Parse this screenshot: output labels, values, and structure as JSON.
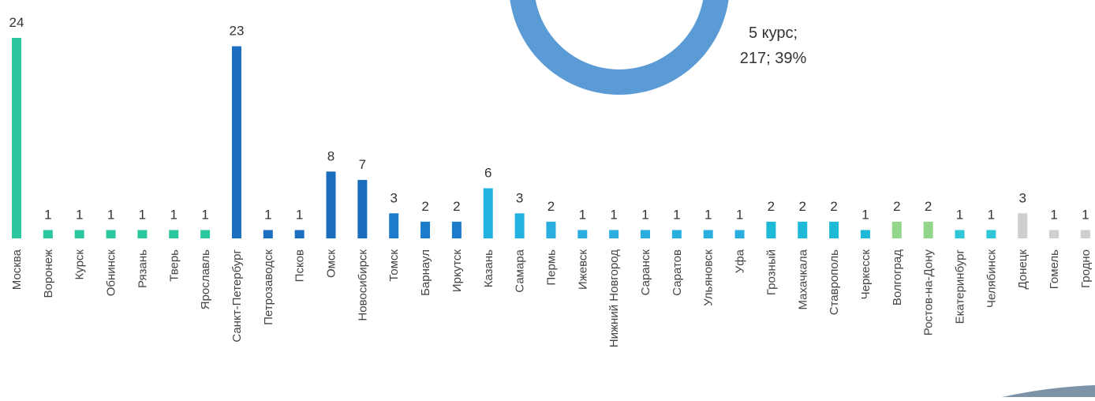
{
  "chart_data": {
    "type": "bar",
    "categories": [
      "Москва",
      "Воронеж",
      "Курск",
      "Обнинск",
      "Рязань",
      "Тверь",
      "Ярославль",
      "Санкт-Петербург",
      "Петрозаводск",
      "Псков",
      "Омск",
      "Новосибирск",
      "Томск",
      "Барнаул",
      "Иркутск",
      "Казань",
      "Самара",
      "Пермь",
      "Ижевск",
      "Нижний Новгород",
      "Саранск",
      "Саратов",
      "Ульяновск",
      "Уфа",
      "Грозный",
      "Махачкала",
      "Ставрополь",
      "Черкесск",
      "Волгоград",
      "Ростов-на-Дону",
      "Екатеринбург",
      "Челябинск",
      "Донецк",
      "Гомель",
      "Гродно"
    ],
    "values": [
      24,
      1,
      1,
      1,
      1,
      1,
      1,
      23,
      1,
      1,
      8,
      7,
      3,
      2,
      2,
      6,
      3,
      2,
      1,
      1,
      1,
      1,
      1,
      1,
      2,
      2,
      2,
      1,
      2,
      2,
      1,
      1,
      3,
      1,
      1
    ],
    "colors": [
      "#2cc79e",
      "#2cc79e",
      "#2cc79e",
      "#2cc79e",
      "#2cc79e",
      "#2cc79e",
      "#2cc79e",
      "#1c6fc0",
      "#1c6fc0",
      "#1c6fc0",
      "#1a6cbd",
      "#1a6cbd",
      "#1b7ccb",
      "#1b7ccb",
      "#1b7ccb",
      "#22b2e2",
      "#22b2e2",
      "#2aaee0",
      "#2aaee0",
      "#2aaee0",
      "#2aaee0",
      "#2aaee0",
      "#2aaee0",
      "#2aaee0",
      "#1eb9d6",
      "#1eb9d6",
      "#1eb9d6",
      "#1eb9d6",
      "#92d68c",
      "#92d68c",
      "#2fc6d6",
      "#2fc6d6",
      "#cfcfcf",
      "#cfcfcf",
      "#cfcfcf"
    ],
    "donut_label": {
      "name": "5 курс;",
      "value_label": "217; 39%"
    }
  }
}
